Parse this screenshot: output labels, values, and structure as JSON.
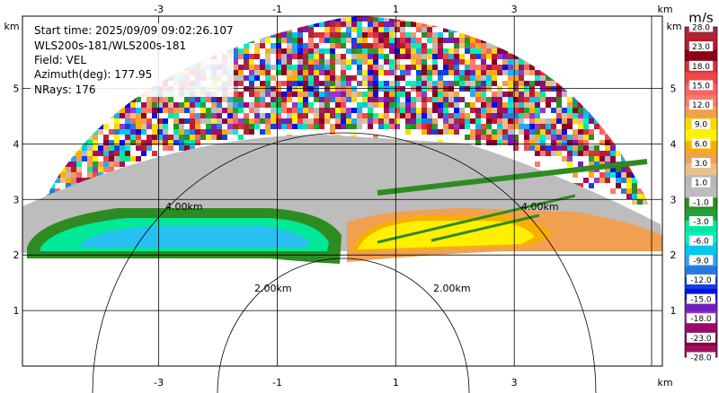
{
  "chart_data": {
    "type": "heatmap",
    "subtype": "radar-rhi-velocity",
    "info_lines": [
      "Start time: 2025/09/09 09:02:26.107",
      "WLS200s-181/WLS200s-181",
      "Field: VEL",
      "Azimuth(deg): 177.95",
      "NRays: 176"
    ],
    "x_unit": "km",
    "y_unit": "km",
    "x_tick_labels": [
      "-3",
      "-1",
      "1",
      "3"
    ],
    "x_ticks": [
      -3,
      -1,
      1,
      3
    ],
    "y_tick_labels": [
      "1",
      "2",
      "3",
      "4",
      "5"
    ],
    "y_ticks": [
      1,
      2,
      3,
      4,
      5
    ],
    "xlim": [
      -5.3,
      5.5
    ],
    "ylim": [
      0,
      6.3
    ],
    "grid": true,
    "range_ring_labels": [
      "2.00km",
      "2.00km",
      "4.00km",
      "4.00km"
    ],
    "colorbar": {
      "title": "m/s",
      "labels": [
        "28.0",
        "23.0",
        "18.0",
        "15.0",
        "12.0",
        "9.0",
        "6.0",
        "3.0",
        "1.0",
        "-1.0",
        "-3.0",
        "-6.0",
        "-9.0",
        "-12.0",
        "-15.0",
        "-18.0",
        "-23.0",
        "-28.0"
      ],
      "colors": [
        "#a82838",
        "#c0182a",
        "#8c0018",
        "#d8303a",
        "#f04848",
        "#f86464",
        "#ff7a6a",
        "#f0a050",
        "#f8d800",
        "#fff000",
        "#f8b000",
        "#f0a050",
        "#e8c08a",
        "#b8b8b8",
        "#bdbdbd",
        "#2e8b22",
        "#1fa23a",
        "#00e898",
        "#00f0c0",
        "#00c8e8",
        "#28a8f0",
        "#2878e0",
        "#1040e8",
        "#0010e8",
        "#7020c0",
        "#9838c8",
        "#9a0a6a",
        "#880040",
        "#a01060"
      ]
    }
  }
}
